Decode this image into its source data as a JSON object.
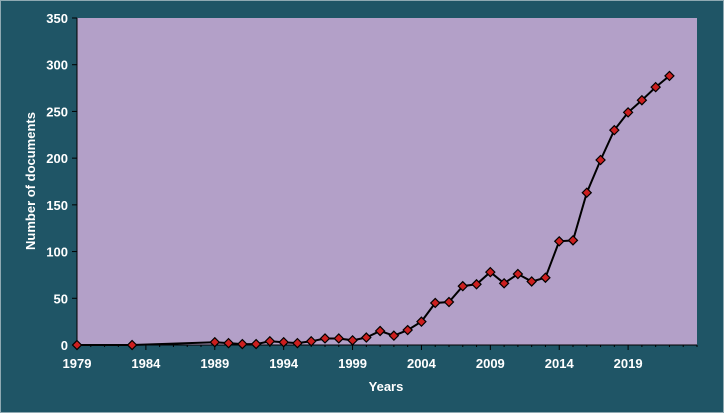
{
  "chart_data": {
    "type": "line",
    "title": "",
    "xlabel": "Years",
    "ylabel": "Number of documents",
    "xlim": [
      1979,
      2024
    ],
    "ylim": [
      0,
      350
    ],
    "x_ticks": [
      1979,
      1984,
      1989,
      1994,
      1999,
      2004,
      2009,
      2014,
      2019
    ],
    "y_ticks": [
      0,
      50,
      100,
      150,
      200,
      250,
      300,
      350
    ],
    "grid": false,
    "legend": "none",
    "colors": {
      "plot_background": "#b3a0c8",
      "figure_background": "#1f5566",
      "line": "#000000",
      "marker_fill": "#cc1f1f"
    },
    "series": [
      {
        "x": [
          1979,
          1983,
          1989,
          1990,
          1991,
          1992,
          1993,
          1994,
          1995,
          1996,
          1997,
          1998,
          1999,
          2000,
          2001,
          2002,
          2003,
          2004,
          2005,
          2006,
          2007,
          2008,
          2009,
          2010,
          2011,
          2012,
          2013,
          2014,
          2015,
          2016,
          2017,
          2018,
          2019,
          2020,
          2021,
          2022
        ],
        "values": [
          0,
          0,
          3,
          2,
          1,
          1,
          4,
          3,
          2,
          4,
          7,
          7,
          5,
          8,
          15,
          10,
          16,
          25,
          45,
          46,
          63,
          65,
          78,
          66,
          76,
          68,
          72,
          111,
          112,
          163,
          198,
          230,
          249,
          262,
          276,
          288
        ]
      }
    ]
  }
}
